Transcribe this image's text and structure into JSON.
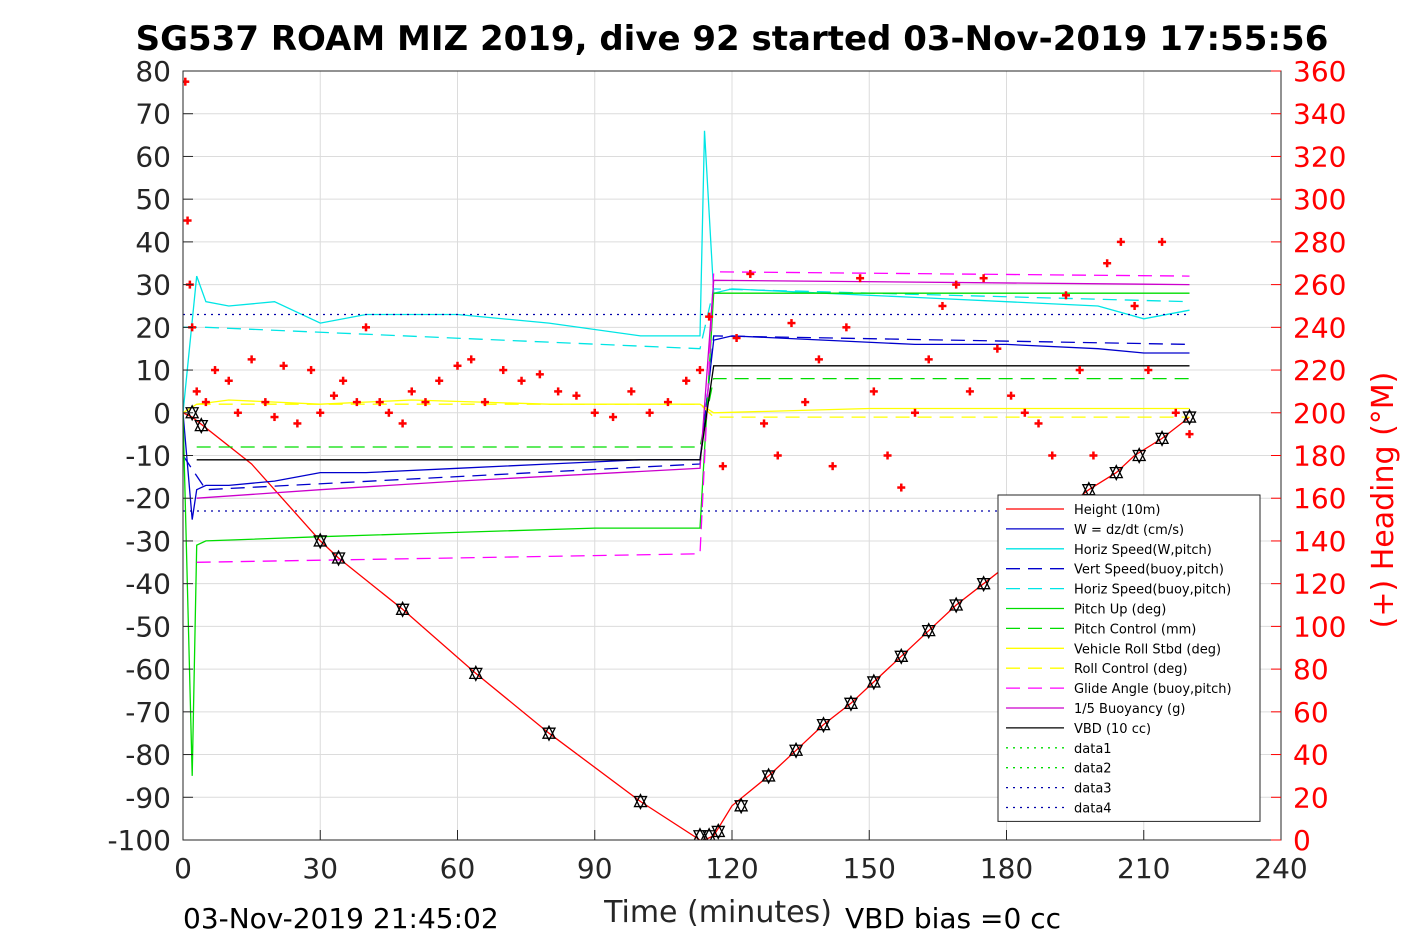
{
  "chart_data": {
    "type": "line",
    "title": "SG537 ROAM MIZ 2019, dive 92 started 03-Nov-2019 17:55:56",
    "xlabel": "Time (minutes)",
    "ylabel_right": "(+) Heading (°M)",
    "footer_left": "03-Nov-2019 21:45:02",
    "footer_right": "VBD bias =0 cc",
    "xlim": [
      0,
      240
    ],
    "ylim_left": [
      -100,
      80
    ],
    "ylim_right": [
      0,
      360
    ],
    "x_ticks": [
      "0",
      "30",
      "60",
      "90",
      "120",
      "150",
      "180",
      "210",
      "240"
    ],
    "y_ticks_left": [
      "80",
      "70",
      "60",
      "50",
      "40",
      "30",
      "20",
      "10",
      "0",
      "-10",
      "-20",
      "-30",
      "-40",
      "-50",
      "-60",
      "-70",
      "-80",
      "-90",
      "-100"
    ],
    "y_ticks_right": [
      "360",
      "340",
      "320",
      "300",
      "280",
      "260",
      "240",
      "220",
      "200",
      "180",
      "160",
      "140",
      "120",
      "100",
      "80",
      "60",
      "40",
      "20",
      "0"
    ],
    "grid": true,
    "legend_position": "bottom-right",
    "colors": {
      "red": "#ff0000",
      "blue": "#0000cc",
      "cyan": "#00e5e5",
      "green": "#00dd00",
      "yellow": "#ffff00",
      "magenta": "#ff00ff",
      "purple": "#cc00cc",
      "black": "#000000",
      "navy": "#0000aa"
    },
    "series": [
      {
        "name": "Height (10m)",
        "color": "#ff0000",
        "style": "solid",
        "x": [
          0,
          2,
          15,
          30,
          34,
          48,
          64,
          80,
          100,
          113,
          114,
          116,
          120,
          128,
          134,
          140,
          146,
          151,
          157,
          163,
          169,
          175,
          181,
          187,
          198,
          204,
          208,
          214,
          220
        ],
        "y": [
          0,
          -1,
          -12,
          -30,
          -34,
          -46,
          -61,
          -75,
          -91,
          -100,
          -100,
          -99,
          -92,
          -85,
          -79,
          -73,
          -68,
          -63,
          -57,
          -51,
          -45,
          -40,
          -35,
          -27,
          -18,
          -14,
          -10,
          -6,
          -1
        ]
      },
      {
        "name": "W = dz/dt (cm/s)",
        "color": "#0000cc",
        "style": "solid",
        "x": [
          0,
          2,
          3,
          5,
          10,
          20,
          30,
          40,
          60,
          80,
          100,
          113,
          116,
          120,
          140,
          160,
          180,
          200,
          210,
          220
        ],
        "y": [
          0,
          -25,
          -18,
          -17,
          -17,
          -16,
          -14,
          -14,
          -13,
          -12,
          -11,
          -11,
          17,
          18,
          17,
          16,
          16,
          15,
          14,
          14
        ]
      },
      {
        "name": "Horiz Speed(W,pitch)",
        "color": "#00e5e5",
        "style": "solid",
        "x": [
          0,
          3,
          5,
          10,
          20,
          30,
          40,
          60,
          80,
          100,
          113,
          114,
          116,
          120,
          140,
          160,
          180,
          200,
          210,
          220
        ],
        "y": [
          0,
          32,
          26,
          25,
          26,
          21,
          23,
          23,
          21,
          18,
          18,
          66,
          28,
          29,
          28,
          27,
          26,
          25,
          22,
          24
        ]
      },
      {
        "name": "Vert Speed(buoy,pitch)",
        "color": "#0000cc",
        "style": "dash",
        "x": [
          0,
          5,
          113,
          116,
          220
        ],
        "y": [
          -10,
          -18,
          -12,
          18,
          16
        ]
      },
      {
        "name": "Horiz Speed(buoy,pitch)",
        "color": "#00e5e5",
        "style": "dash",
        "x": [
          0,
          5,
          113,
          116,
          220
        ],
        "y": [
          20,
          20,
          15,
          29,
          26
        ]
      },
      {
        "name": "Pitch Up (deg)",
        "color": "#00dd00",
        "style": "solid",
        "x": [
          0,
          2,
          3,
          5,
          30,
          60,
          90,
          113,
          116,
          150,
          200,
          220
        ],
        "y": [
          0,
          -85,
          -31,
          -30,
          -29,
          -28,
          -27,
          -27,
          28,
          28,
          28,
          28
        ]
      },
      {
        "name": "Pitch Control (mm)",
        "color": "#00dd00",
        "style": "dash",
        "x": [
          3,
          113,
          116,
          220
        ],
        "y": [
          -8,
          -8,
          8,
          8
        ]
      },
      {
        "name": "Vehicle Roll Stbd (deg)",
        "color": "#ffff00",
        "style": "solid",
        "x": [
          0,
          3,
          10,
          30,
          50,
          80,
          110,
          113,
          116,
          150,
          200,
          220
        ],
        "y": [
          0,
          2,
          3,
          2,
          3,
          2,
          2,
          2,
          0,
          1,
          1,
          1
        ]
      },
      {
        "name": "Roll Control (deg)",
        "color": "#ffff00",
        "style": "dash",
        "x": [
          3,
          113,
          116,
          220
        ],
        "y": [
          2,
          2,
          -1,
          -1
        ]
      },
      {
        "name": "Glide Angle (buoy,pitch)",
        "color": "#ff00ff",
        "style": "dash",
        "x": [
          3,
          113,
          116,
          220
        ],
        "y": [
          -35,
          -33,
          33,
          32
        ]
      },
      {
        "name": "1/5 Buoyancy (g)",
        "color": "#cc00cc",
        "style": "solid",
        "x": [
          3,
          30,
          60,
          113,
          116,
          220
        ],
        "y": [
          -20,
          -18,
          -16,
          -13,
          31,
          30
        ]
      },
      {
        "name": "VBD (10 cc)",
        "color": "#000000",
        "style": "solid",
        "x": [
          3,
          113,
          116,
          220
        ],
        "y": [
          -11,
          -11,
          11,
          11
        ]
      },
      {
        "name": "data1",
        "color": "#00dd00",
        "style": "dot",
        "x": [],
        "y": []
      },
      {
        "name": "data2",
        "color": "#00dd00",
        "style": "dot",
        "x": [],
        "y": []
      },
      {
        "name": "data3",
        "color": "#0000aa",
        "style": "dot",
        "x": [
          0,
          220
        ],
        "y": [
          23,
          23
        ]
      },
      {
        "name": "data4",
        "color": "#0000aa",
        "style": "dot",
        "x": [
          0,
          220
        ],
        "y": [
          -23,
          -23
        ]
      }
    ],
    "heading_series": {
      "axis": "right",
      "marker": "+",
      "color": "#ff0000",
      "x": [
        0.5,
        1,
        1.5,
        2,
        3,
        5,
        7,
        10,
        12,
        15,
        18,
        20,
        22,
        25,
        28,
        30,
        33,
        35,
        38,
        40,
        43,
        45,
        48,
        50,
        53,
        56,
        60,
        63,
        66,
        70,
        74,
        78,
        82,
        86,
        90,
        94,
        98,
        102,
        106,
        110,
        113,
        115,
        118,
        121,
        124,
        127,
        130,
        133,
        136,
        139,
        142,
        145,
        148,
        151,
        154,
        157,
        160,
        163,
        166,
        169,
        172,
        175,
        178,
        181,
        184,
        187,
        190,
        193,
        196,
        199,
        202,
        205,
        208,
        211,
        214,
        217,
        220
      ],
      "y": [
        355,
        290,
        260,
        240,
        210,
        205,
        220,
        215,
        200,
        225,
        205,
        198,
        222,
        195,
        220,
        200,
        208,
        215,
        205,
        240,
        205,
        200,
        195,
        210,
        205,
        215,
        222,
        225,
        205,
        220,
        215,
        218,
        210,
        208,
        200,
        198,
        210,
        200,
        205,
        215,
        220,
        245,
        175,
        235,
        265,
        195,
        180,
        242,
        205,
        225,
        175,
        240,
        263,
        210,
        180,
        165,
        200,
        225,
        250,
        260,
        210,
        263,
        230,
        208,
        200,
        195,
        180,
        255,
        220,
        180,
        270,
        280,
        250,
        220,
        280,
        200,
        190
      ]
    },
    "markers": {
      "symbol": "triangles",
      "color": "#000000",
      "x": [
        2,
        4,
        30,
        34,
        48,
        64,
        80,
        100,
        113,
        115,
        117,
        122,
        128,
        134,
        140,
        146,
        151,
        157,
        163,
        169,
        175,
        198,
        204,
        209,
        214,
        220
      ],
      "y": [
        0,
        -3,
        -30,
        -34,
        -46,
        -61,
        -75,
        -91,
        -99,
        -99,
        -98,
        -92,
        -85,
        -79,
        -73,
        -68,
        -63,
        -57,
        -51,
        -45,
        -40,
        -18,
        -14,
        -10,
        -6,
        -1
      ]
    }
  }
}
